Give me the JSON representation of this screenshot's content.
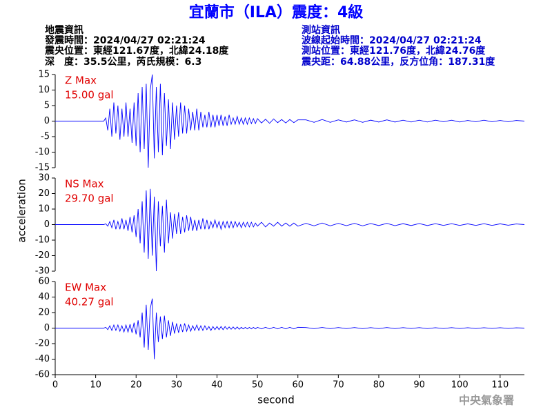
{
  "title": "宜蘭市（ILA）震度：4級",
  "info_left": [
    "地震資訊",
    "發震時間：2024/04/27 02:21:24",
    "震央位置：東經121.67度，北緯24.18度",
    "深　度：35.5公里，芮氏規模：6.3"
  ],
  "info_right": [
    "測站資訊",
    "波線起始時間：2024/04/27 02:21:24",
    "測站位置：東經121.76度，北緯24.76度",
    "震央距：64.88公里，反方位角：187.31度"
  ],
  "footer": "中央氣象署",
  "chart_data": [
    {
      "type": "line",
      "annotations": [
        "Z Max",
        "15.00 gal"
      ],
      "color": "#0000ff",
      "xlim": [
        0,
        116
      ],
      "ylim": [
        -15,
        15
      ],
      "yticks": [
        -15,
        -10,
        -5,
        0,
        5,
        10,
        15
      ],
      "x": [
        0,
        12,
        12.5,
        13,
        13.5,
        14,
        14.5,
        15,
        15.5,
        16,
        16.5,
        17,
        17.5,
        18,
        18.5,
        19,
        19.5,
        20,
        20.5,
        21,
        21.5,
        22,
        22.5,
        23,
        23.5,
        24,
        24.5,
        25,
        25.5,
        26,
        26.5,
        27,
        27.5,
        28,
        28.5,
        29,
        29.5,
        30,
        30.5,
        31,
        31.5,
        32,
        32.5,
        33,
        33.5,
        34,
        34.5,
        35,
        35.5,
        36,
        36.5,
        37,
        37.5,
        38,
        38.5,
        39,
        39.5,
        40,
        40.5,
        41,
        41.5,
        42,
        42.5,
        43,
        43.5,
        44,
        44.5,
        45,
        45.5,
        46,
        46.5,
        47,
        47.5,
        48,
        48.5,
        49,
        49.5,
        50,
        51,
        52,
        53,
        54,
        55,
        56,
        57,
        58,
        59,
        60,
        62,
        64,
        66,
        68,
        70,
        72,
        74,
        76,
        78,
        80,
        82,
        84,
        86,
        88,
        90,
        92,
        94,
        96,
        98,
        100,
        102,
        104,
        106,
        108,
        110,
        112,
        114,
        116
      ],
      "values": [
        0,
        0,
        1,
        -3,
        4,
        -5,
        6,
        -4,
        5,
        -6,
        4,
        -5,
        6,
        -5,
        4,
        -7,
        6,
        -8,
        9,
        -10,
        11,
        -9,
        12,
        -15,
        10,
        15,
        -12,
        11,
        -10,
        12,
        -11,
        9,
        -8,
        7,
        -9,
        6,
        -6,
        5,
        -5,
        6,
        -4,
        5,
        -4,
        4,
        -3,
        3,
        -3,
        4,
        -3,
        3,
        -2,
        2,
        -2,
        3,
        -2,
        2,
        -2,
        2,
        -1.5,
        2,
        -1.5,
        1.5,
        -1.5,
        2,
        -1,
        1,
        -1,
        1.5,
        -1,
        1,
        -1,
        1,
        -1,
        1,
        -0.8,
        0.8,
        -0.8,
        0.8,
        -0.6,
        0.6,
        -0.7,
        0.7,
        -0.5,
        0.5,
        -0.6,
        0.5,
        -0.5,
        0.4,
        0.4,
        -0.4,
        0.5,
        -0.4,
        0.4,
        -0.3,
        0.4,
        -0.4,
        0.3,
        -0.3,
        0.4,
        -0.3,
        0.3,
        -0.3,
        0.3,
        -0.3,
        0.3,
        -0.2,
        0.3,
        -0.3,
        0.2,
        -0.2,
        0.3,
        -0.2,
        0.2,
        -0.2,
        0.2,
        0
      ]
    },
    {
      "type": "line",
      "annotations": [
        "NS Max",
        "29.70 gal"
      ],
      "color": "#0000ff",
      "ylabel": "acceleration",
      "xlim": [
        0,
        116
      ],
      "ylim": [
        -30,
        30
      ],
      "yticks": [
        -30,
        -20,
        -10,
        0,
        10,
        20,
        30
      ],
      "x": [
        0,
        12,
        12.5,
        13,
        13.5,
        14,
        14.5,
        15,
        15.5,
        16,
        16.5,
        17,
        17.5,
        18,
        18.5,
        19,
        19.5,
        20,
        20.5,
        21,
        21.5,
        22,
        22.5,
        23,
        23.5,
        24,
        24.5,
        25,
        25.5,
        26,
        26.5,
        27,
        27.5,
        28,
        28.5,
        29,
        29.5,
        30,
        30.5,
        31,
        31.5,
        32,
        32.5,
        33,
        33.5,
        34,
        34.5,
        35,
        35.5,
        36,
        36.5,
        37,
        37.5,
        38,
        38.5,
        39,
        39.5,
        40,
        40.5,
        41,
        41.5,
        42,
        42.5,
        43,
        43.5,
        44,
        44.5,
        45,
        45.5,
        46,
        46.5,
        47,
        47.5,
        48,
        48.5,
        49,
        49.5,
        50,
        51,
        52,
        53,
        54,
        55,
        56,
        57,
        58,
        59,
        60,
        62,
        64,
        66,
        68,
        70,
        72,
        74,
        76,
        78,
        80,
        82,
        84,
        86,
        88,
        90,
        92,
        94,
        96,
        98,
        100,
        102,
        104,
        106,
        108,
        110,
        112,
        114,
        116
      ],
      "values": [
        0,
        0,
        0.5,
        -1,
        2,
        -2,
        3,
        -3,
        2,
        -3,
        4,
        -3,
        3,
        -4,
        5,
        -5,
        6,
        -8,
        10,
        -12,
        15,
        -18,
        22,
        -22,
        23,
        -20,
        18,
        -30,
        15,
        -14,
        12,
        -18,
        16,
        -12,
        8,
        -9,
        7,
        -6,
        8,
        -6,
        5,
        -5,
        6,
        -4,
        5,
        -4,
        3,
        -4,
        3,
        -3,
        4,
        -3,
        3,
        -3,
        2,
        -2,
        3,
        -2,
        2,
        -3,
        2,
        -2,
        2,
        -2,
        2,
        -2,
        2,
        -1.5,
        1.5,
        -2,
        1.5,
        -1.5,
        1.5,
        -1.5,
        1.5,
        -1.5,
        1,
        -1,
        1.5,
        -1.5,
        1,
        -1,
        1.5,
        -1,
        1,
        -1,
        1,
        -1,
        0.8,
        -0.8,
        1,
        -0.8,
        0.8,
        -0.7,
        0.8,
        -0.8,
        0.7,
        -0.6,
        0.8,
        -0.7,
        0.6,
        -0.6,
        0.7,
        -0.6,
        0.6,
        -0.5,
        0.6,
        -0.5,
        0.5,
        -0.5,
        0.6,
        -0.5,
        0.5,
        -0.4,
        0.4,
        0
      ]
    },
    {
      "type": "line",
      "annotations": [
        "EW Max",
        "40.27 gal"
      ],
      "color": "#0000ff",
      "xlabel": "second",
      "xlim": [
        0,
        116
      ],
      "ylim": [
        -60,
        60
      ],
      "yticks": [
        -60,
        -40,
        -20,
        0,
        20,
        40,
        60
      ],
      "xticks": [
        0,
        10,
        20,
        30,
        40,
        50,
        60,
        70,
        80,
        90,
        100,
        110
      ],
      "x": [
        0,
        12,
        12.5,
        13,
        13.5,
        14,
        14.5,
        15,
        15.5,
        16,
        16.5,
        17,
        17.5,
        18,
        18.5,
        19,
        19.5,
        20,
        20.5,
        21,
        21.5,
        22,
        22.5,
        23,
        23.5,
        24,
        24.5,
        25,
        25.5,
        26,
        26.5,
        27,
        27.5,
        28,
        28.5,
        29,
        29.5,
        30,
        30.5,
        31,
        31.5,
        32,
        32.5,
        33,
        33.5,
        34,
        34.5,
        35,
        35.5,
        36,
        36.5,
        37,
        37.5,
        38,
        38.5,
        39,
        39.5,
        40,
        40.5,
        41,
        41.5,
        42,
        42.5,
        43,
        43.5,
        44,
        44.5,
        45,
        45.5,
        46,
        46.5,
        47,
        47.5,
        48,
        48.5,
        49,
        49.5,
        50,
        51,
        52,
        53,
        54,
        55,
        56,
        57,
        58,
        59,
        60,
        62,
        64,
        66,
        68,
        70,
        72,
        74,
        76,
        78,
        80,
        82,
        84,
        86,
        88,
        90,
        92,
        94,
        96,
        98,
        100,
        102,
        104,
        106,
        108,
        110,
        112,
        114,
        116
      ],
      "values": [
        0,
        0,
        1,
        -2,
        3,
        -3,
        4,
        -3,
        4,
        -4,
        3,
        -5,
        4,
        -5,
        5,
        -6,
        7,
        -8,
        10,
        -12,
        20,
        -25,
        30,
        -28,
        25,
        38,
        -40,
        20,
        -18,
        15,
        -14,
        16,
        -12,
        10,
        -10,
        8,
        -7,
        6,
        -6,
        5,
        -5,
        6,
        -4,
        4,
        -4,
        3,
        -3,
        4,
        -3,
        3,
        -3,
        3,
        -2,
        2,
        -3,
        2,
        -2,
        2,
        -2,
        2,
        -2,
        2,
        -1.5,
        1.5,
        -1.5,
        1.5,
        -1.5,
        1.5,
        -1.5,
        1,
        -1,
        1,
        -1,
        1,
        -1,
        1,
        -1,
        1,
        -1,
        1,
        -1,
        1,
        -1,
        1,
        -1,
        1,
        -1,
        1,
        0.7,
        -0.7,
        0.8,
        -0.7,
        0.7,
        -0.6,
        0.7,
        -0.7,
        0.6,
        -0.6,
        0.7,
        -0.6,
        0.6,
        -0.5,
        0.6,
        -0.6,
        0.5,
        -0.5,
        0.6,
        -0.5,
        0.5,
        -0.5,
        0.5,
        -0.4,
        0.5,
        -0.4,
        0.4,
        0
      ]
    }
  ]
}
